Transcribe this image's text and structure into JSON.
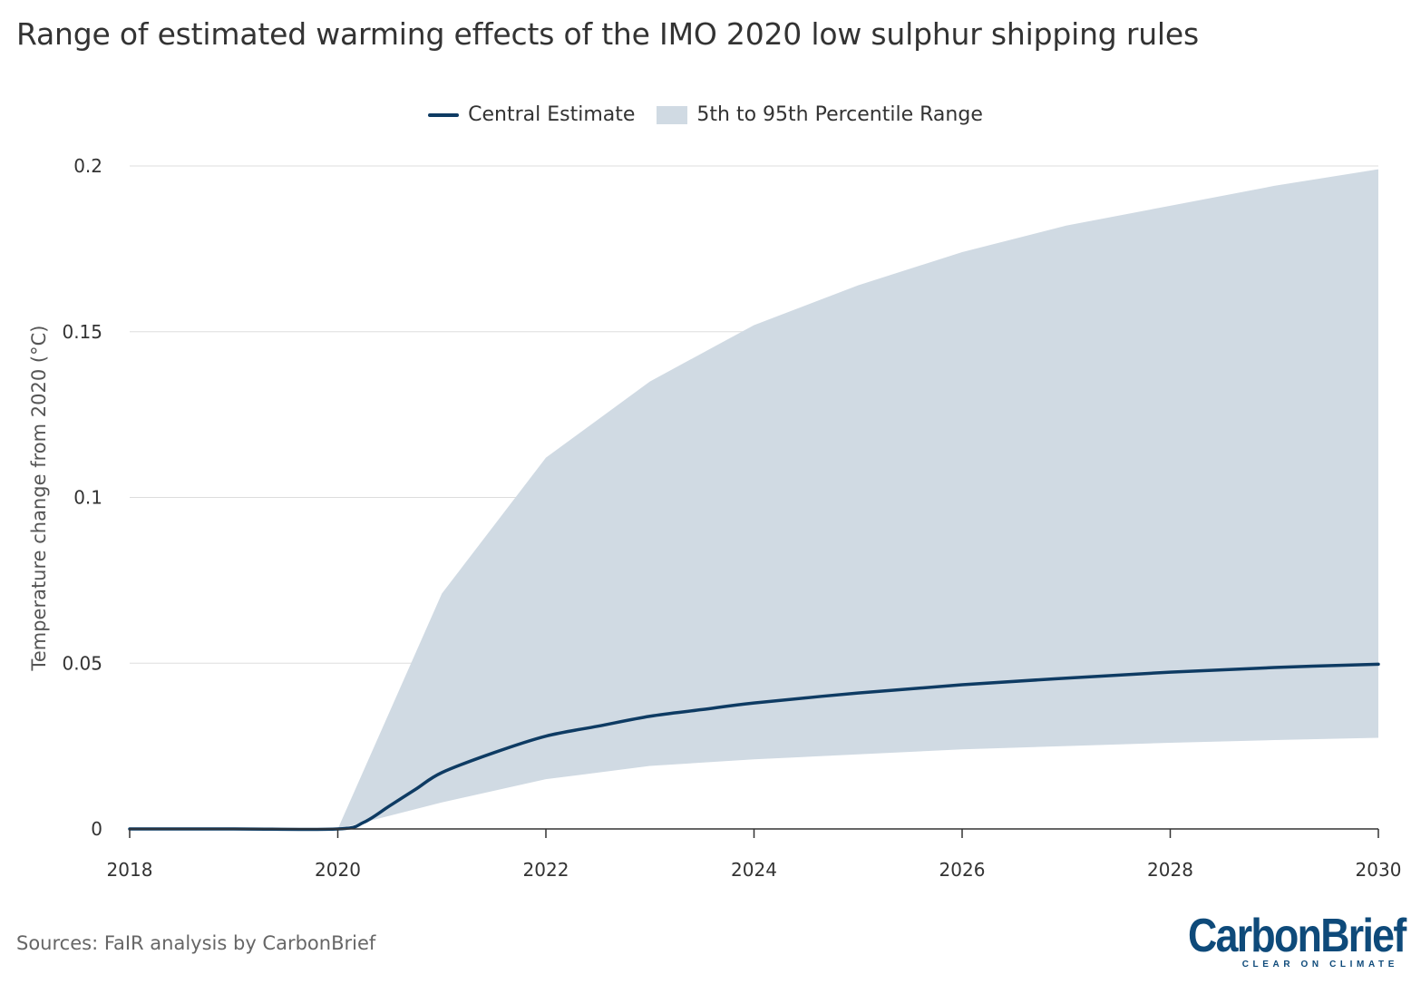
{
  "title": "Range of estimated warming effects of the IMO 2020 low sulphur shipping rules",
  "legend": {
    "central": "Central Estimate",
    "range": "5th to 95th Percentile Range"
  },
  "source": "Sources: FaIR analysis by CarbonBrief",
  "logo": {
    "name": "CarbonBrief",
    "tagline": "CLEAR ON CLIMATE"
  },
  "colors": {
    "line": "#0e3b63",
    "band": "#d0dae3",
    "grid": "#dddddd",
    "axis": "#333333"
  },
  "chart_data": {
    "type": "area",
    "ylabel": "Temperature change from 2020 (°C)",
    "xlabel": "",
    "xlim": [
      2018,
      2030
    ],
    "ylim": [
      0,
      0.2
    ],
    "x_ticks": [
      2018,
      2020,
      2022,
      2024,
      2026,
      2028,
      2030
    ],
    "y_ticks": [
      0,
      0.05,
      0.1,
      0.15,
      0.2
    ],
    "y_tick_labels": [
      "0",
      "0.05",
      "0.1",
      "0.15",
      "0.2"
    ],
    "grid": true,
    "legend_position": "top-center",
    "series": [
      {
        "name": "Central Estimate",
        "kind": "line",
        "x": [
          2018,
          2019,
          2020,
          2020.25,
          2020.5,
          2020.75,
          2021,
          2021.5,
          2022,
          2022.5,
          2023,
          2023.5,
          2024,
          2025,
          2026,
          2027,
          2028,
          2029,
          2030
        ],
        "y": [
          0,
          0,
          0,
          0.002,
          0.007,
          0.012,
          0.017,
          0.023,
          0.028,
          0.031,
          0.034,
          0.036,
          0.038,
          0.041,
          0.0435,
          0.0455,
          0.0473,
          0.0487,
          0.0497
        ]
      },
      {
        "name": "5th to 95th Percentile Range",
        "kind": "band",
        "x": [
          2020,
          2021,
          2022,
          2023,
          2024,
          2025,
          2026,
          2027,
          2028,
          2029,
          2030
        ],
        "lower": [
          0,
          0.008,
          0.015,
          0.019,
          0.021,
          0.0225,
          0.024,
          0.025,
          0.026,
          0.0268,
          0.0275
        ],
        "upper": [
          0,
          0.071,
          0.112,
          0.135,
          0.152,
          0.164,
          0.174,
          0.182,
          0.188,
          0.194,
          0.199
        ]
      }
    ]
  }
}
